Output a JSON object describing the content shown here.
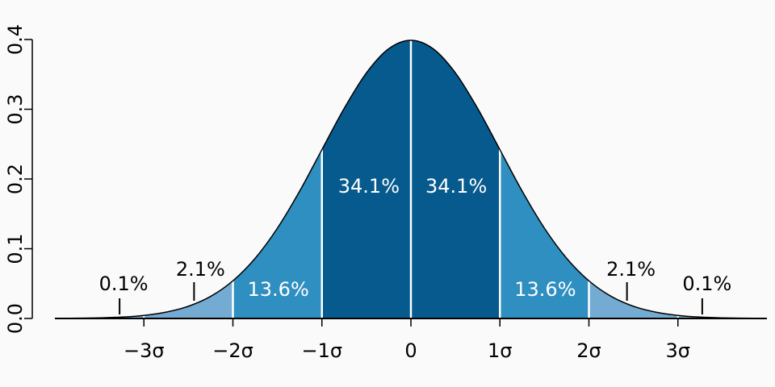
{
  "chart_data": {
    "type": "area",
    "series": [
      {
        "color": "#000000",
        "x": [
          -4,
          -3.75,
          -3.5,
          -3.25,
          -3,
          -2.75,
          -2.5,
          -2.25,
          -2,
          -1.75,
          -1.5,
          -1.25,
          -1,
          -0.75,
          -0.5,
          -0.25,
          0,
          0.25,
          0.5,
          0.75,
          1,
          1.25,
          1.5,
          1.75,
          2,
          2.25,
          2.5,
          2.75,
          3,
          3.25,
          3.5,
          3.75,
          4
        ],
        "values": [
          0.0001,
          0.0004,
          0.0009,
          0.002,
          0.0044,
          0.0091,
          0.0175,
          0.0317,
          0.054,
          0.0863,
          0.1295,
          0.1826,
          0.242,
          0.3011,
          0.3521,
          0.3867,
          0.3989,
          0.3867,
          0.3521,
          0.3011,
          0.242,
          0.1826,
          0.1295,
          0.0863,
          0.054,
          0.0317,
          0.0175,
          0.0091,
          0.0044,
          0.002,
          0.0009,
          0.0004,
          0.0001
        ]
      }
    ],
    "regions": {
      "bounds": [
        -4,
        -3,
        -2,
        -1,
        0,
        1,
        2,
        3,
        4
      ],
      "values": [
        0.1,
        2.1,
        13.6,
        34.1,
        34.1,
        13.6,
        2.1,
        0.1
      ],
      "value_labels": [
        "0.1%",
        "2.1%",
        "13.6%",
        "34.1%",
        "34.1%",
        "13.6%",
        "2.1%",
        "0.1%"
      ],
      "colors": [
        "#74abd3",
        "#74abd3",
        "#2e8fc0",
        "#065a8e",
        "#065a8e",
        "#2e8fc0",
        "#74abd3",
        "#74abd3"
      ]
    },
    "xlim": [
      -4,
      4
    ],
    "xticks": [
      {
        "value": -3,
        "label": "−3σ"
      },
      {
        "value": -2,
        "label": "−2σ"
      },
      {
        "value": -1,
        "label": "−1σ"
      },
      0,
      {
        "value": 1,
        "label": "1σ"
      },
      {
        "value": 2,
        "label": "2σ"
      },
      {
        "value": 3,
        "label": "3σ"
      }
    ],
    "ylim": [
      0,
      0.4
    ],
    "yticks": [
      {
        "value": 0,
        "label": "0.0"
      },
      0.1,
      0.2,
      0.3,
      0.4
    ]
  }
}
